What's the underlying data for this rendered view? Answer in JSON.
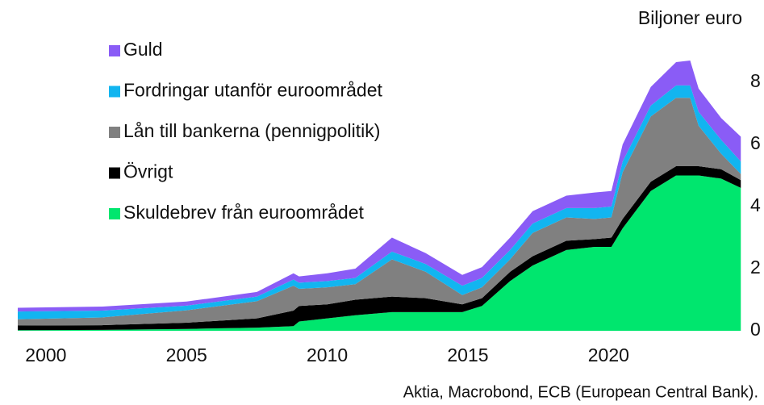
{
  "chart_data": {
    "type": "stacked_area",
    "unit_label": "Biljoner euro",
    "source": "Aktia, Macrobond, ECB (European Central Bank).",
    "x": [
      1999.0,
      2002.0,
      2005.0,
      2007.5,
      2008.8,
      2009.0,
      2010.0,
      2011.0,
      2012.3,
      2013.5,
      2014.8,
      2015.5,
      2016.5,
      2017.3,
      2018.5,
      2019.5,
      2020.1,
      2020.5,
      2021.5,
      2022.4,
      2022.9,
      2023.2,
      2024.0,
      2024.7
    ],
    "series": [
      {
        "name": "Skuldebrev från euroområdet",
        "color": "#00e66e",
        "values": [
          0.02,
          0.03,
          0.06,
          0.1,
          0.15,
          0.3,
          0.4,
          0.5,
          0.6,
          0.6,
          0.6,
          0.8,
          1.6,
          2.1,
          2.6,
          2.7,
          2.7,
          3.3,
          4.5,
          5.0,
          5.0,
          5.0,
          4.9,
          4.6
        ]
      },
      {
        "name": "Övrigt",
        "color": "#000000",
        "values": [
          0.15,
          0.15,
          0.2,
          0.3,
          0.5,
          0.5,
          0.45,
          0.5,
          0.5,
          0.45,
          0.25,
          0.25,
          0.3,
          0.3,
          0.3,
          0.25,
          0.3,
          0.3,
          0.3,
          0.3,
          0.3,
          0.3,
          0.3,
          0.25
        ]
      },
      {
        "name": "Lån till bankerna (pennigpolitik)",
        "color": "#808080",
        "values": [
          0.2,
          0.25,
          0.4,
          0.55,
          0.8,
          0.55,
          0.55,
          0.5,
          1.2,
          0.85,
          0.3,
          0.35,
          0.4,
          0.75,
          0.75,
          0.65,
          0.65,
          1.5,
          2.1,
          2.2,
          2.2,
          1.3,
          0.5,
          0.2
        ]
      },
      {
        "name": "Fordringar utanför euroområdet",
        "color": "#12b5f0",
        "values": [
          0.25,
          0.22,
          0.15,
          0.15,
          0.2,
          0.2,
          0.2,
          0.2,
          0.25,
          0.25,
          0.3,
          0.3,
          0.3,
          0.3,
          0.3,
          0.35,
          0.35,
          0.35,
          0.35,
          0.4,
          0.4,
          0.45,
          0.45,
          0.4
        ]
      },
      {
        "name": "Guld",
        "color": "#8a5cf6",
        "values": [
          0.12,
          0.13,
          0.13,
          0.15,
          0.2,
          0.2,
          0.25,
          0.3,
          0.45,
          0.35,
          0.35,
          0.35,
          0.4,
          0.4,
          0.4,
          0.5,
          0.5,
          0.55,
          0.6,
          0.75,
          0.8,
          0.75,
          0.7,
          0.8
        ]
      }
    ],
    "xlim": [
      1999.0,
      2024.75
    ],
    "xticks": [
      2000,
      2005,
      2010,
      2015,
      2020
    ],
    "ylim": [
      0,
      9
    ],
    "yticks": [
      0,
      2,
      4,
      6,
      8
    ]
  }
}
